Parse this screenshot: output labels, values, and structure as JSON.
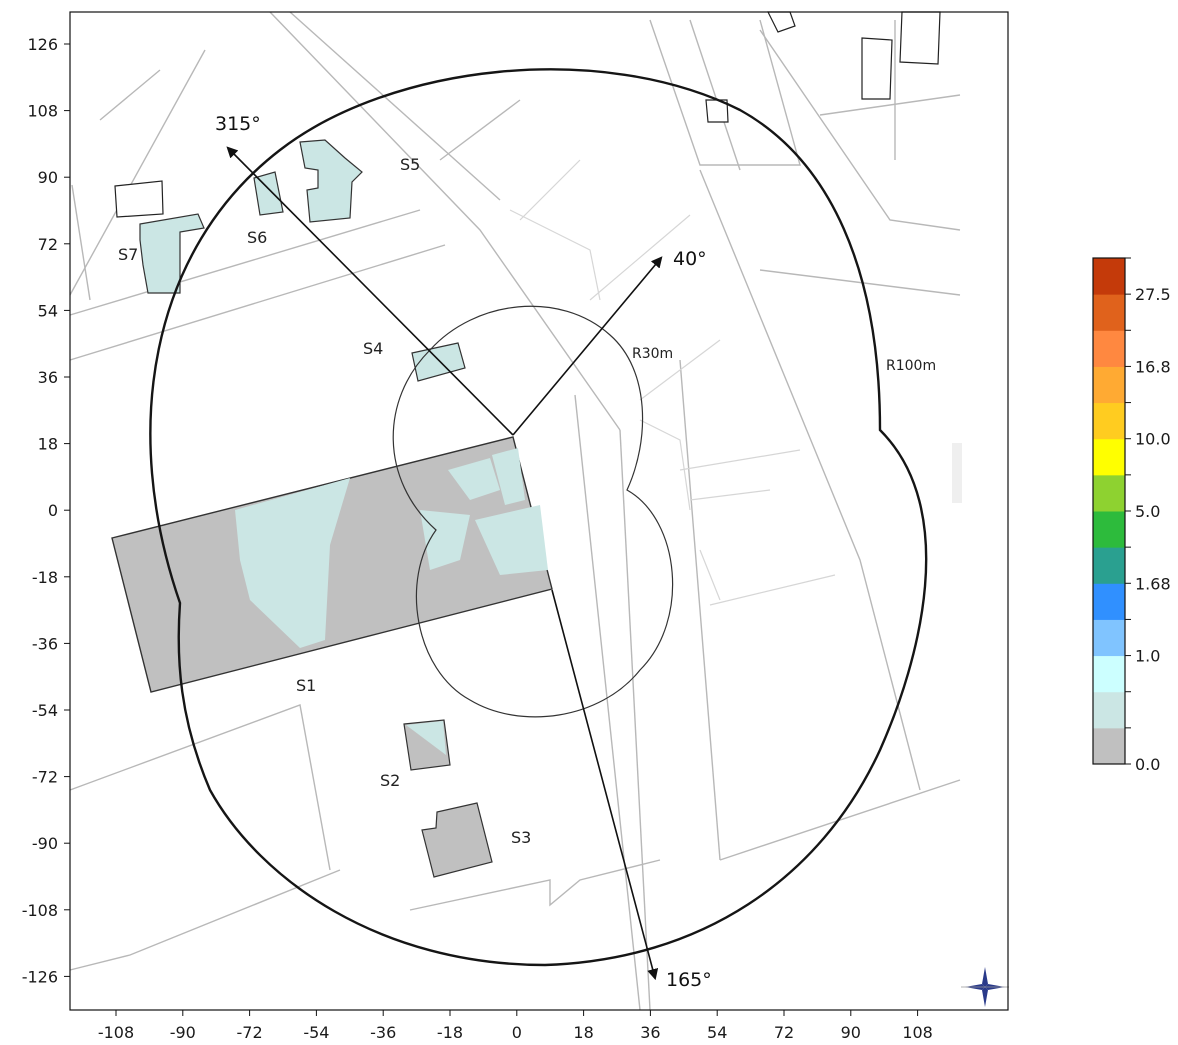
{
  "x_ticks": [
    "-108",
    "-90",
    "-72",
    "-54",
    "-36",
    "-18",
    "0",
    "18",
    "36",
    "54",
    "72",
    "90",
    "108"
  ],
  "y_ticks": [
    "126",
    "108",
    "90",
    "72",
    "54",
    "36",
    "18",
    "0",
    "-18",
    "-36",
    "-54",
    "-72",
    "-90",
    "-108",
    "-126"
  ],
  "zones": {
    "s1": "S1",
    "s2": "S2",
    "s3": "S3",
    "s4": "S4",
    "s5": "S5",
    "s6": "S6",
    "s7": "S7"
  },
  "directions": {
    "nw": "315°",
    "ne": "40°",
    "s": "165°"
  },
  "radii": {
    "inner": "R30m",
    "outer": "R100m"
  },
  "colorbar": {
    "tick_labels": [
      "27.5",
      "16.8",
      "10.0",
      "5.0",
      "1.68",
      "1.0",
      "0.0"
    ],
    "bands": [
      "#c0c0c0",
      "#cbe6e4",
      "#ccffff",
      "#80c4ff",
      "#3090ff",
      "#2aa090",
      "#2dbb3c",
      "#8ed230",
      "#ffff00",
      "#ffcc20",
      "#ffaa33",
      "#ff8840",
      "#e0621c",
      "#c43a0a"
    ]
  }
}
